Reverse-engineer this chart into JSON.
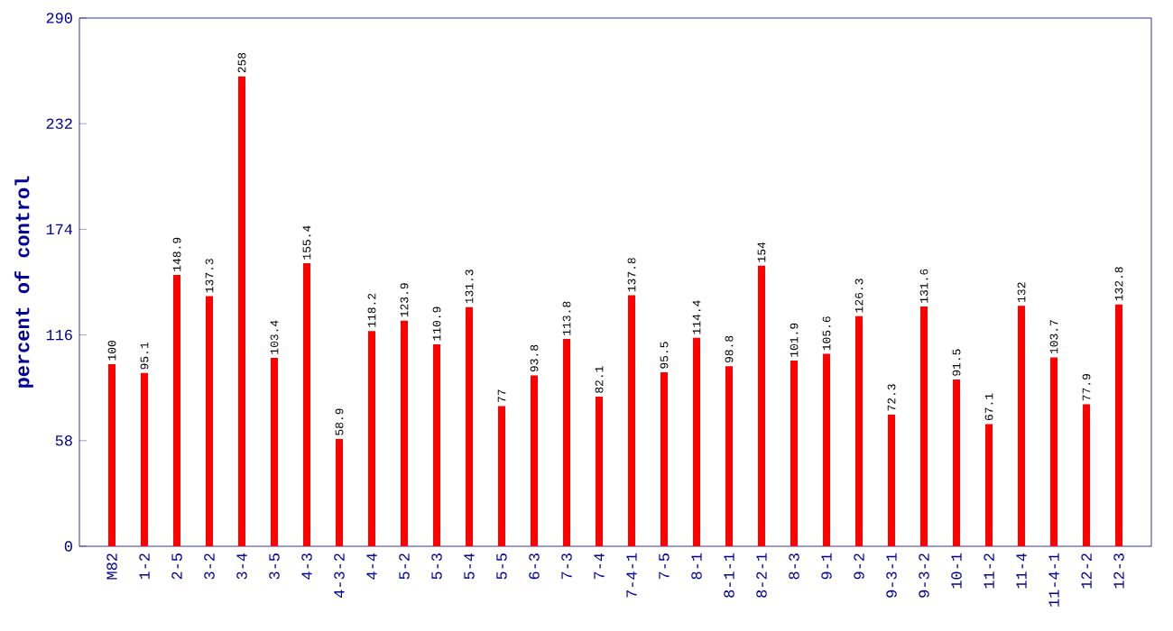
{
  "chart_data": {
    "type": "bar",
    "ylabel": "percent of control",
    "categories": [
      "M82",
      "1-2",
      "2-5",
      "3-2",
      "3-4",
      "3-5",
      "4-3",
      "4-3-2",
      "4-4",
      "5-2",
      "5-3",
      "5-4",
      "5-5",
      "6-3",
      "7-3",
      "7-4",
      "7-4-1",
      "7-5",
      "8-1",
      "8-1-1",
      "8-2-1",
      "8-3",
      "9-1",
      "9-2",
      "9-3-1",
      "9-3-2",
      "10-1",
      "11-2",
      "11-4",
      "11-4-1",
      "12-2",
      "12-3"
    ],
    "values": [
      100,
      95.1,
      148.9,
      137.3,
      258,
      103.4,
      155.4,
      58.9,
      118.2,
      123.9,
      110.9,
      131.3,
      77,
      93.8,
      113.8,
      82.1,
      137.8,
      95.5,
      114.4,
      98.8,
      154,
      101.9,
      105.6,
      126.3,
      72.3,
      131.6,
      91.5,
      67.1,
      132,
      103.7,
      77.9,
      132.8
    ],
    "color": "#ff0000",
    "ylim": [
      0,
      290
    ],
    "yticks": [
      0,
      58,
      116,
      174,
      232,
      290
    ],
    "data_labels": true
  }
}
